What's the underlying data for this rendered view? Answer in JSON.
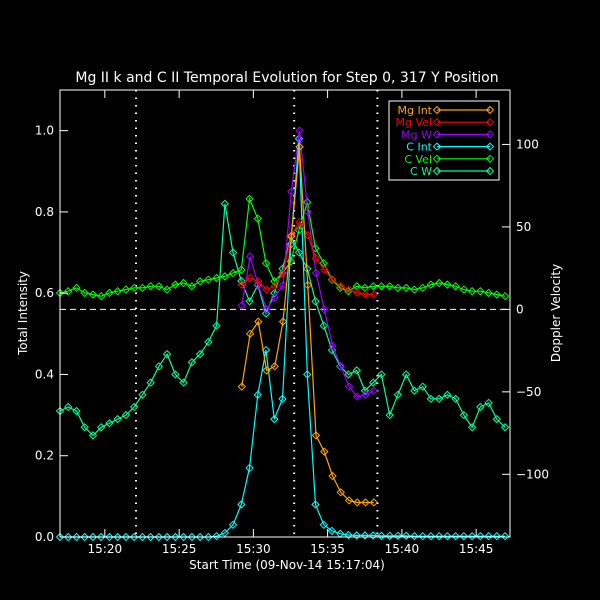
{
  "chart_data": {
    "type": "line",
    "title": "Mg II k and C II Temporal Evolution for Step 0, 317 Y Position",
    "xlabel": "Start Time (09-Nov-14 15:17:04)",
    "ylabel_left": "Total Intensity",
    "ylabel_right": "Doppler Velocity",
    "xlim": [
      15.283,
      15.788
    ],
    "ylim_left": [
      0,
      1.1
    ],
    "ylim_right": [
      -138,
      133
    ],
    "x_ticks": [
      {
        "value": 15.3333,
        "label": "15:20"
      },
      {
        "value": 15.4167,
        "label": "15:25"
      },
      {
        "value": 15.5,
        "label": "15:30"
      },
      {
        "value": 15.5833,
        "label": "15:35"
      },
      {
        "value": 15.6667,
        "label": "15:40"
      },
      {
        "value": 15.75,
        "label": "15:45"
      }
    ],
    "y_ticks_left": [
      {
        "value": 0.0,
        "label": "0.0"
      },
      {
        "value": 0.2,
        "label": "0.2"
      },
      {
        "value": 0.4,
        "label": "0.4"
      },
      {
        "value": 0.6,
        "label": "0.6"
      },
      {
        "value": 0.8,
        "label": "0.8"
      },
      {
        "value": 1.0,
        "label": "1.0"
      }
    ],
    "y_ticks_right": [
      {
        "value": -100,
        "label": "−100"
      },
      {
        "value": -50,
        "label": "−50"
      },
      {
        "value": 0,
        "label": "0"
      },
      {
        "value": 50,
        "label": "50"
      },
      {
        "value": 100,
        "label": "100"
      }
    ],
    "vlines": [
      15.3683,
      15.5458,
      15.6392
    ],
    "hline_velocity": 0,
    "series": [
      {
        "name": "Mg Int",
        "color": "#ffa500",
        "axis": "left",
        "x": [
          15.487,
          15.4963,
          15.5055,
          15.5148,
          15.524,
          15.5333,
          15.5426,
          15.5518,
          15.5611,
          15.5703,
          15.5796,
          15.5889,
          15.5981,
          15.6074,
          15.6166,
          15.6259,
          15.6352
        ],
        "values": [
          0.37,
          0.5,
          0.53,
          0.41,
          0.42,
          0.53,
          0.74,
          0.96,
          0.62,
          0.25,
          0.21,
          0.15,
          0.11,
          0.09,
          0.085,
          0.085,
          0.085
        ]
      },
      {
        "name": "Mg Vel",
        "color": "#ff0000",
        "axis": "right",
        "x": [
          15.487,
          15.4963,
          15.5055,
          15.5148,
          15.524,
          15.5333,
          15.5426,
          15.5518,
          15.5611,
          15.5703,
          15.5796,
          15.5889,
          15.5981,
          15.6074,
          15.6166,
          15.6259,
          15.6352
        ],
        "values": [
          15,
          19,
          17,
          12,
          14,
          22,
          45,
          53,
          45,
          31,
          24,
          18,
          14,
          12,
          10,
          9,
          9
        ]
      },
      {
        "name": "Mg W",
        "color": "#9d00ff",
        "axis": "left",
        "x": [
          15.487,
          15.4963,
          15.5055,
          15.5148,
          15.524,
          15.5333,
          15.5426,
          15.5518,
          15.5611,
          15.5703,
          15.5796,
          15.5889,
          15.5981,
          15.6074,
          15.6166,
          15.6259,
          15.6352
        ],
        "values": [
          0.57,
          0.69,
          0.62,
          0.56,
          0.59,
          0.62,
          0.85,
          1.0,
          0.8,
          0.65,
          0.56,
          0.47,
          0.42,
          0.37,
          0.345,
          0.35,
          0.36
        ]
      },
      {
        "name": "C Int",
        "color": "#00ffff",
        "axis": "left",
        "x": [
          15.283,
          15.2922,
          15.3015,
          15.3107,
          15.32,
          15.3292,
          15.3385,
          15.3477,
          15.357,
          15.3662,
          15.3755,
          15.3847,
          15.394,
          15.4032,
          15.4125,
          15.4217,
          15.431,
          15.4402,
          15.4495,
          15.4587,
          15.468,
          15.4772,
          15.4865,
          15.4957,
          15.505,
          15.5142,
          15.5235,
          15.5327,
          15.542,
          15.5512,
          15.5605,
          15.5697,
          15.579,
          15.5882,
          15.5975,
          15.6067,
          15.616,
          15.6252,
          15.6345,
          15.6437,
          15.653,
          15.6622,
          15.6715,
          15.6807,
          15.69,
          15.6992,
          15.7085,
          15.7177,
          15.727,
          15.7362,
          15.7455,
          15.7547,
          15.764,
          15.7732,
          15.7825
        ],
        "values": [
          0,
          0,
          0,
          0,
          0,
          0,
          0,
          0,
          0,
          0,
          0,
          0,
          0,
          0,
          0,
          0,
          0,
          0,
          0,
          0.002,
          0.01,
          0.03,
          0.08,
          0.17,
          0.35,
          0.46,
          0.29,
          0.34,
          0.72,
          0.98,
          0.4,
          0.08,
          0.03,
          0.015,
          0.008,
          0.005,
          0.004,
          0.004,
          0.004,
          0.003,
          0.003,
          0.003,
          0.003,
          0.002,
          0.002,
          0.002,
          0.002,
          0.002,
          0.002,
          0.002,
          0.002,
          0.002,
          0.002,
          0.002,
          0.002
        ]
      },
      {
        "name": "C Vel",
        "color": "#00ff00",
        "axis": "right",
        "x": [
          15.283,
          15.2922,
          15.3015,
          15.3107,
          15.32,
          15.3292,
          15.3385,
          15.3477,
          15.357,
          15.3662,
          15.3755,
          15.3847,
          15.394,
          15.4032,
          15.4125,
          15.4217,
          15.431,
          15.4402,
          15.4495,
          15.4587,
          15.468,
          15.4772,
          15.4865,
          15.4957,
          15.505,
          15.5142,
          15.5235,
          15.5327,
          15.542,
          15.5512,
          15.5605,
          15.5697,
          15.579,
          15.5882,
          15.5975,
          15.6067,
          15.616,
          15.6252,
          15.6345,
          15.6437,
          15.653,
          15.6622,
          15.6715,
          15.6807,
          15.69,
          15.6992,
          15.7085,
          15.7177,
          15.727,
          15.7362,
          15.7455,
          15.7547,
          15.764,
          15.7732,
          15.7825
        ],
        "values": [
          10,
          11,
          13,
          10,
          9,
          8,
          10,
          11,
          12,
          13,
          13,
          14,
          14,
          12,
          15,
          16,
          14,
          17,
          18,
          19,
          20,
          22,
          24,
          67,
          55,
          28,
          17,
          22,
          29,
          48,
          65,
          37,
          28,
          18,
          13,
          11,
          14,
          13,
          14,
          14,
          14,
          13,
          13,
          12,
          13,
          15,
          16,
          15,
          14,
          12,
          11,
          11,
          10,
          9,
          8
        ]
      },
      {
        "name": "C W",
        "color": "#00ff99",
        "axis": "left",
        "x": [
          15.283,
          15.2922,
          15.3015,
          15.3107,
          15.32,
          15.3292,
          15.3385,
          15.3477,
          15.357,
          15.3662,
          15.3755,
          15.3847,
          15.394,
          15.4032,
          15.4125,
          15.4217,
          15.431,
          15.4402,
          15.4495,
          15.4587,
          15.468,
          15.4772,
          15.4865,
          15.4957,
          15.505,
          15.5142,
          15.5235,
          15.5327,
          15.542,
          15.5512,
          15.5605,
          15.5697,
          15.579,
          15.5882,
          15.5975,
          15.6067,
          15.616,
          15.6252,
          15.6345,
          15.6437,
          15.653,
          15.6622,
          15.6715,
          15.6807,
          15.69,
          15.6992,
          15.7085,
          15.7177,
          15.727,
          15.7362,
          15.7455,
          15.7547,
          15.764,
          15.7732,
          15.7825
        ],
        "values": [
          0.31,
          0.32,
          0.31,
          0.27,
          0.25,
          0.27,
          0.28,
          0.29,
          0.3,
          0.32,
          0.35,
          0.38,
          0.42,
          0.45,
          0.4,
          0.38,
          0.43,
          0.45,
          0.48,
          0.52,
          0.82,
          0.7,
          0.63,
          0.58,
          0.62,
          0.55,
          0.6,
          0.66,
          0.74,
          0.7,
          0.66,
          0.58,
          0.52,
          0.46,
          0.42,
          0.4,
          0.41,
          0.36,
          0.38,
          0.4,
          0.3,
          0.35,
          0.4,
          0.36,
          0.37,
          0.34,
          0.34,
          0.35,
          0.34,
          0.3,
          0.27,
          0.32,
          0.33,
          0.29,
          0.27
        ]
      }
    ]
  }
}
